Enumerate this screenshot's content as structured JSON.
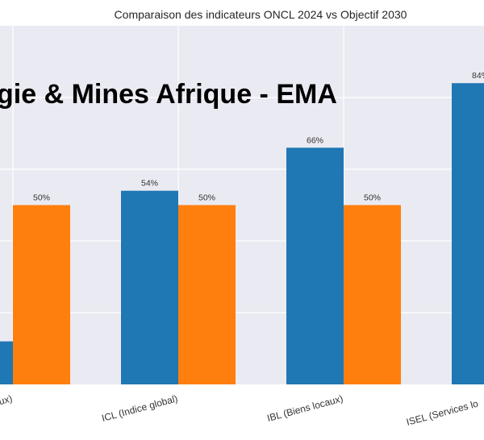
{
  "chart_data": {
    "type": "bar",
    "title": "Comparaison des indicateurs ONCL 2024 vs Objectif 2030",
    "watermark": "gie & Mines Afrique - EMA",
    "categories": [
      "ux)",
      "ICL (Indice global)",
      "IBL (Biens locaux)",
      "ISEL (Services lo"
    ],
    "series": [
      {
        "color": "#1f77b4",
        "values": [
          12,
          54,
          66,
          84
        ],
        "labels": [
          "",
          "54%",
          "66%",
          "84%"
        ]
      },
      {
        "color": "#ff7f0e",
        "values": [
          50,
          50,
          50,
          null
        ],
        "labels": [
          "50%",
          "50%",
          "50%",
          ""
        ]
      }
    ],
    "ylim": [
      0,
      100
    ],
    "yticks": [
      20,
      40,
      60,
      80
    ],
    "grid": true,
    "background": "#eaeaf2"
  }
}
